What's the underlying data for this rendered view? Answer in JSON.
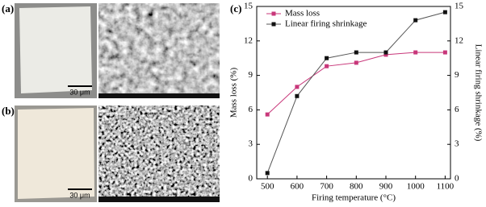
{
  "panels": [
    {
      "label": "(a)",
      "scale_bar": "30 μm"
    },
    {
      "label": "(b)",
      "scale_bar": "30 μm"
    }
  ],
  "chart_data": {
    "type": "line",
    "panel_label": "(c)",
    "x_label": "Firing temperature (°C)",
    "y_label": "Mass loss (%)",
    "y2_label": "Linear firing shrinkage (%)",
    "x": [
      500,
      600,
      700,
      800,
      900,
      1000,
      1100
    ],
    "series": [
      {
        "name": "Mass loss",
        "color": "#c8377a",
        "marker": "square",
        "values": [
          5.6,
          8.0,
          9.8,
          10.1,
          10.8,
          11.0,
          11.0
        ]
      },
      {
        "name": "Linear firing shrinkage",
        "color": "#111111",
        "marker": "square",
        "axis": "y2",
        "values": [
          0.5,
          7.2,
          10.5,
          11.0,
          11.0,
          13.8,
          14.5
        ]
      }
    ],
    "xlim": [
      464,
      1118
    ],
    "xticks": [
      500,
      600,
      700,
      800,
      900,
      1000,
      1100
    ],
    "ylim": [
      0,
      15
    ],
    "yticks": [
      0,
      3,
      6,
      9,
      12,
      15
    ],
    "y2lim": [
      0,
      15
    ],
    "y2ticks": [
      0,
      3,
      6,
      9,
      12,
      15
    ],
    "legend": "upper left"
  }
}
